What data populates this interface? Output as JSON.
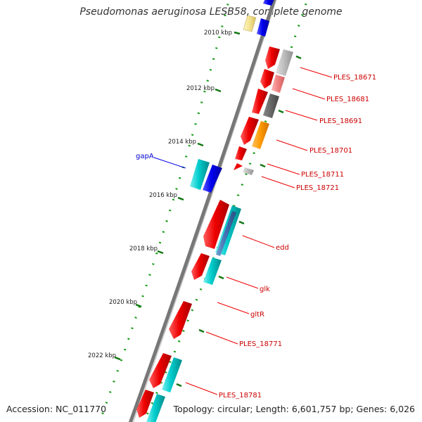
{
  "title": "Pseudomonas aeruginosa LESB58, complete genome",
  "accession": "Accession: NC_011770",
  "summary": "Topology: circular; Length: 6,601,757 bp; Genes: 6,026",
  "scale_labels": [
    "2010 kbp",
    "2012 kbp",
    "2014 kbp",
    "2016 kbp",
    "2018 kbp",
    "2020 kbp",
    "2022 kbp"
  ],
  "gene_labels": [
    {
      "text": "gapA",
      "color": "#0000cc"
    },
    {
      "text": "PLES_18671",
      "color": "#cc0000"
    },
    {
      "text": "PLES_18681",
      "color": "#cc0000"
    },
    {
      "text": "PLES_18691",
      "color": "#cc0000"
    },
    {
      "text": "PLES_18701",
      "color": "#cc0000"
    },
    {
      "text": "PLES_18711",
      "color": "#cc0000"
    },
    {
      "text": "PLES_18721",
      "color": "#cc0000"
    },
    {
      "text": "edd",
      "color": "#cc0000"
    },
    {
      "text": "glk",
      "color": "#cc0000"
    },
    {
      "text": "gltR",
      "color": "#cc0000"
    },
    {
      "text": "PLES_18771",
      "color": "#cc0000"
    },
    {
      "text": "PLES_18781",
      "color": "#cc0000"
    }
  ],
  "colors": {
    "cds": "#ee0000",
    "gapA": "#0000ee",
    "cyan": "#00cccc",
    "backbone": "#777777",
    "tick_major": "#007700",
    "tick_minor": "#009900",
    "label_line_red": "#ee0000",
    "label_line_blue": "#0000ee"
  }
}
